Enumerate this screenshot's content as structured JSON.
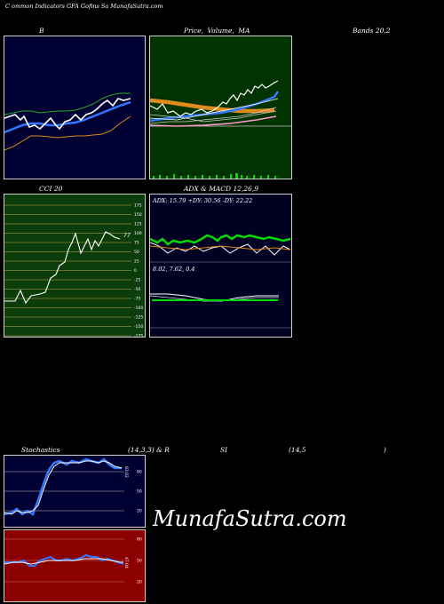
{
  "header": {
    "title": "C               ommon  Indicators GFA Gofins  Sa  MunafaSutra.com"
  },
  "panels": {
    "bb": {
      "title": "B"
    },
    "price": {
      "title_a": "Price,",
      "title_b": "Volume,",
      "title_c": "MA"
    },
    "bands": {
      "title": "Bands 20,2"
    },
    "cci": {
      "title": "CCI 20",
      "value": "77",
      "levels": [
        "175",
        "150",
        "125",
        "100",
        "75",
        "50",
        "25",
        "0",
        "-25",
        "-50",
        "-75",
        "-100",
        "-125",
        "-150",
        "-175"
      ]
    },
    "adx": {
      "title": "ADX  & MACD 12,26,9",
      "adx_text": "ADX: 15.79  +DY: 30.56  -DY: 22.22",
      "macd_text": "8.02,  7.62,  0.4"
    },
    "stoch": {
      "title_a": "Stochastics",
      "title_b": "(14,3,3) & R",
      "title_c": "SI",
      "title_d": "(14,5",
      "title_e": ")",
      "levels": [
        "80",
        "50",
        "20"
      ],
      "value": "83.02"
    },
    "rsi": {
      "levels": [
        "80",
        "50",
        "20"
      ],
      "value": "47.04"
    }
  },
  "watermark": "MunafaSutra.com",
  "colors": {
    "bb_bg": "#000033",
    "price_bg": "#003300",
    "cci_bg": "#0b3d0b",
    "adx_bg": "#000022",
    "rsi_bg": "#8b0000",
    "accent_blue": "#3377ff",
    "accent_green": "#00dd00",
    "accent_orange": "#e08a1a"
  }
}
